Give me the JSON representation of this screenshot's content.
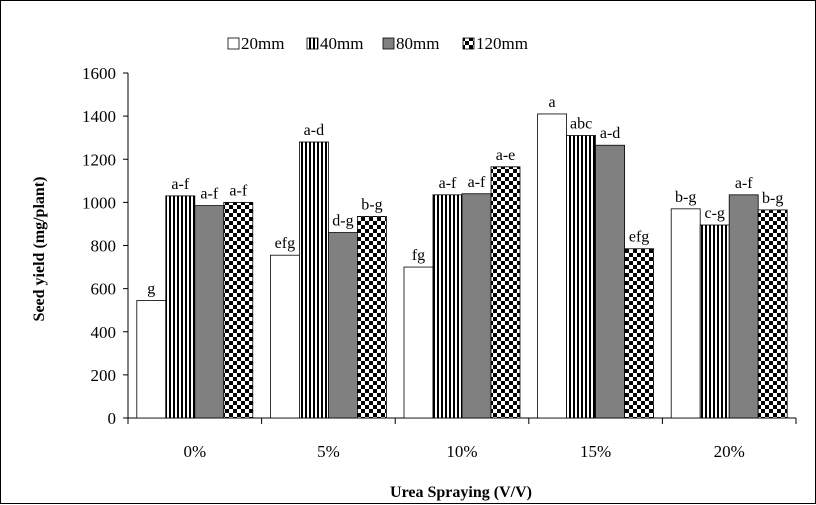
{
  "chart_data": {
    "type": "bar",
    "title": "",
    "xlabel": "Urea Spraying (V/V)",
    "ylabel": "Seed yield (mg/plant)",
    "ylim": [
      0,
      1600
    ],
    "yticks": [
      0,
      200,
      400,
      600,
      800,
      1000,
      1200,
      1400,
      1600
    ],
    "grid": false,
    "legend_position": "top",
    "categories": [
      "0%",
      "5%",
      "10%",
      "15%",
      "20%"
    ],
    "series": [
      {
        "name": "20mm",
        "pattern": "white",
        "values": [
          545,
          755,
          700,
          1410,
          970
        ],
        "labels": [
          "g",
          "efg",
          "fg",
          "a",
          "b-g"
        ]
      },
      {
        "name": "40mm",
        "pattern": "vertical-stripes",
        "values": [
          1030,
          1280,
          1035,
          1310,
          895
        ],
        "labels": [
          "a-f",
          "a-d",
          "a-f",
          "abc",
          "c-g"
        ]
      },
      {
        "name": "80mm",
        "pattern": "gray",
        "values": [
          985,
          860,
          1040,
          1265,
          1035
        ],
        "labels": [
          "a-f",
          "d-g",
          "a-f",
          "a-d",
          "a-f"
        ]
      },
      {
        "name": "120mm",
        "pattern": "checker",
        "values": [
          1000,
          935,
          1165,
          785,
          965
        ],
        "labels": [
          "a-f",
          "b-g",
          "a-e",
          "efg",
          "b-g"
        ]
      }
    ],
    "colors": {
      "axis": "#000000",
      "bar_stroke": "#000000",
      "gray_fill": "#808080",
      "white_fill": "#ffffff",
      "stripe": "#000000"
    }
  }
}
